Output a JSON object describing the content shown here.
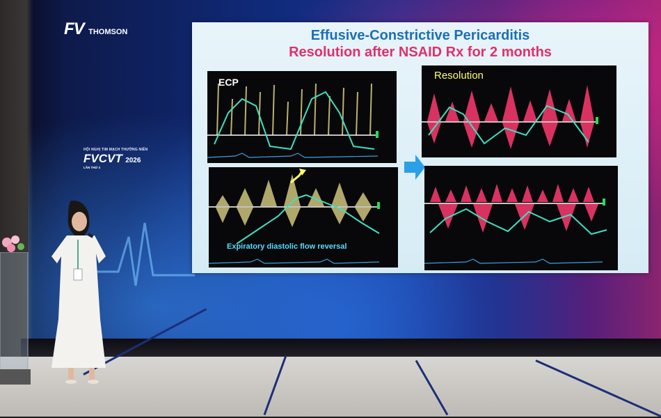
{
  "backdrop": {
    "brand_logo": "FV",
    "brand_sub": "THOMSON",
    "event_small": "HỘI NGHỊ TIM MẠCH THƯỜNG NIÊN",
    "event_big": "FVCVT",
    "event_year": "2026",
    "event_edition": "LẦN THỨ 4"
  },
  "slide": {
    "title_line1": "Effusive-Constrictive Pericarditis",
    "title_line2": "Resolution after NSAID Rx for 2 months",
    "panels": [
      {
        "label": "ECP",
        "color": "#ffe9a0"
      },
      {
        "label": "Resolution",
        "color": "#ff3a70"
      },
      {
        "caption": "Expiratory diastolic flow reversal",
        "color": "#ffe9a0"
      },
      {
        "color": "#ff3a70"
      }
    ]
  },
  "colors": {
    "title_blue": "#1b6fb8",
    "title_pink": "#e0306a",
    "arrow": "#2aa0e8",
    "trace": "#3ee0c0"
  }
}
